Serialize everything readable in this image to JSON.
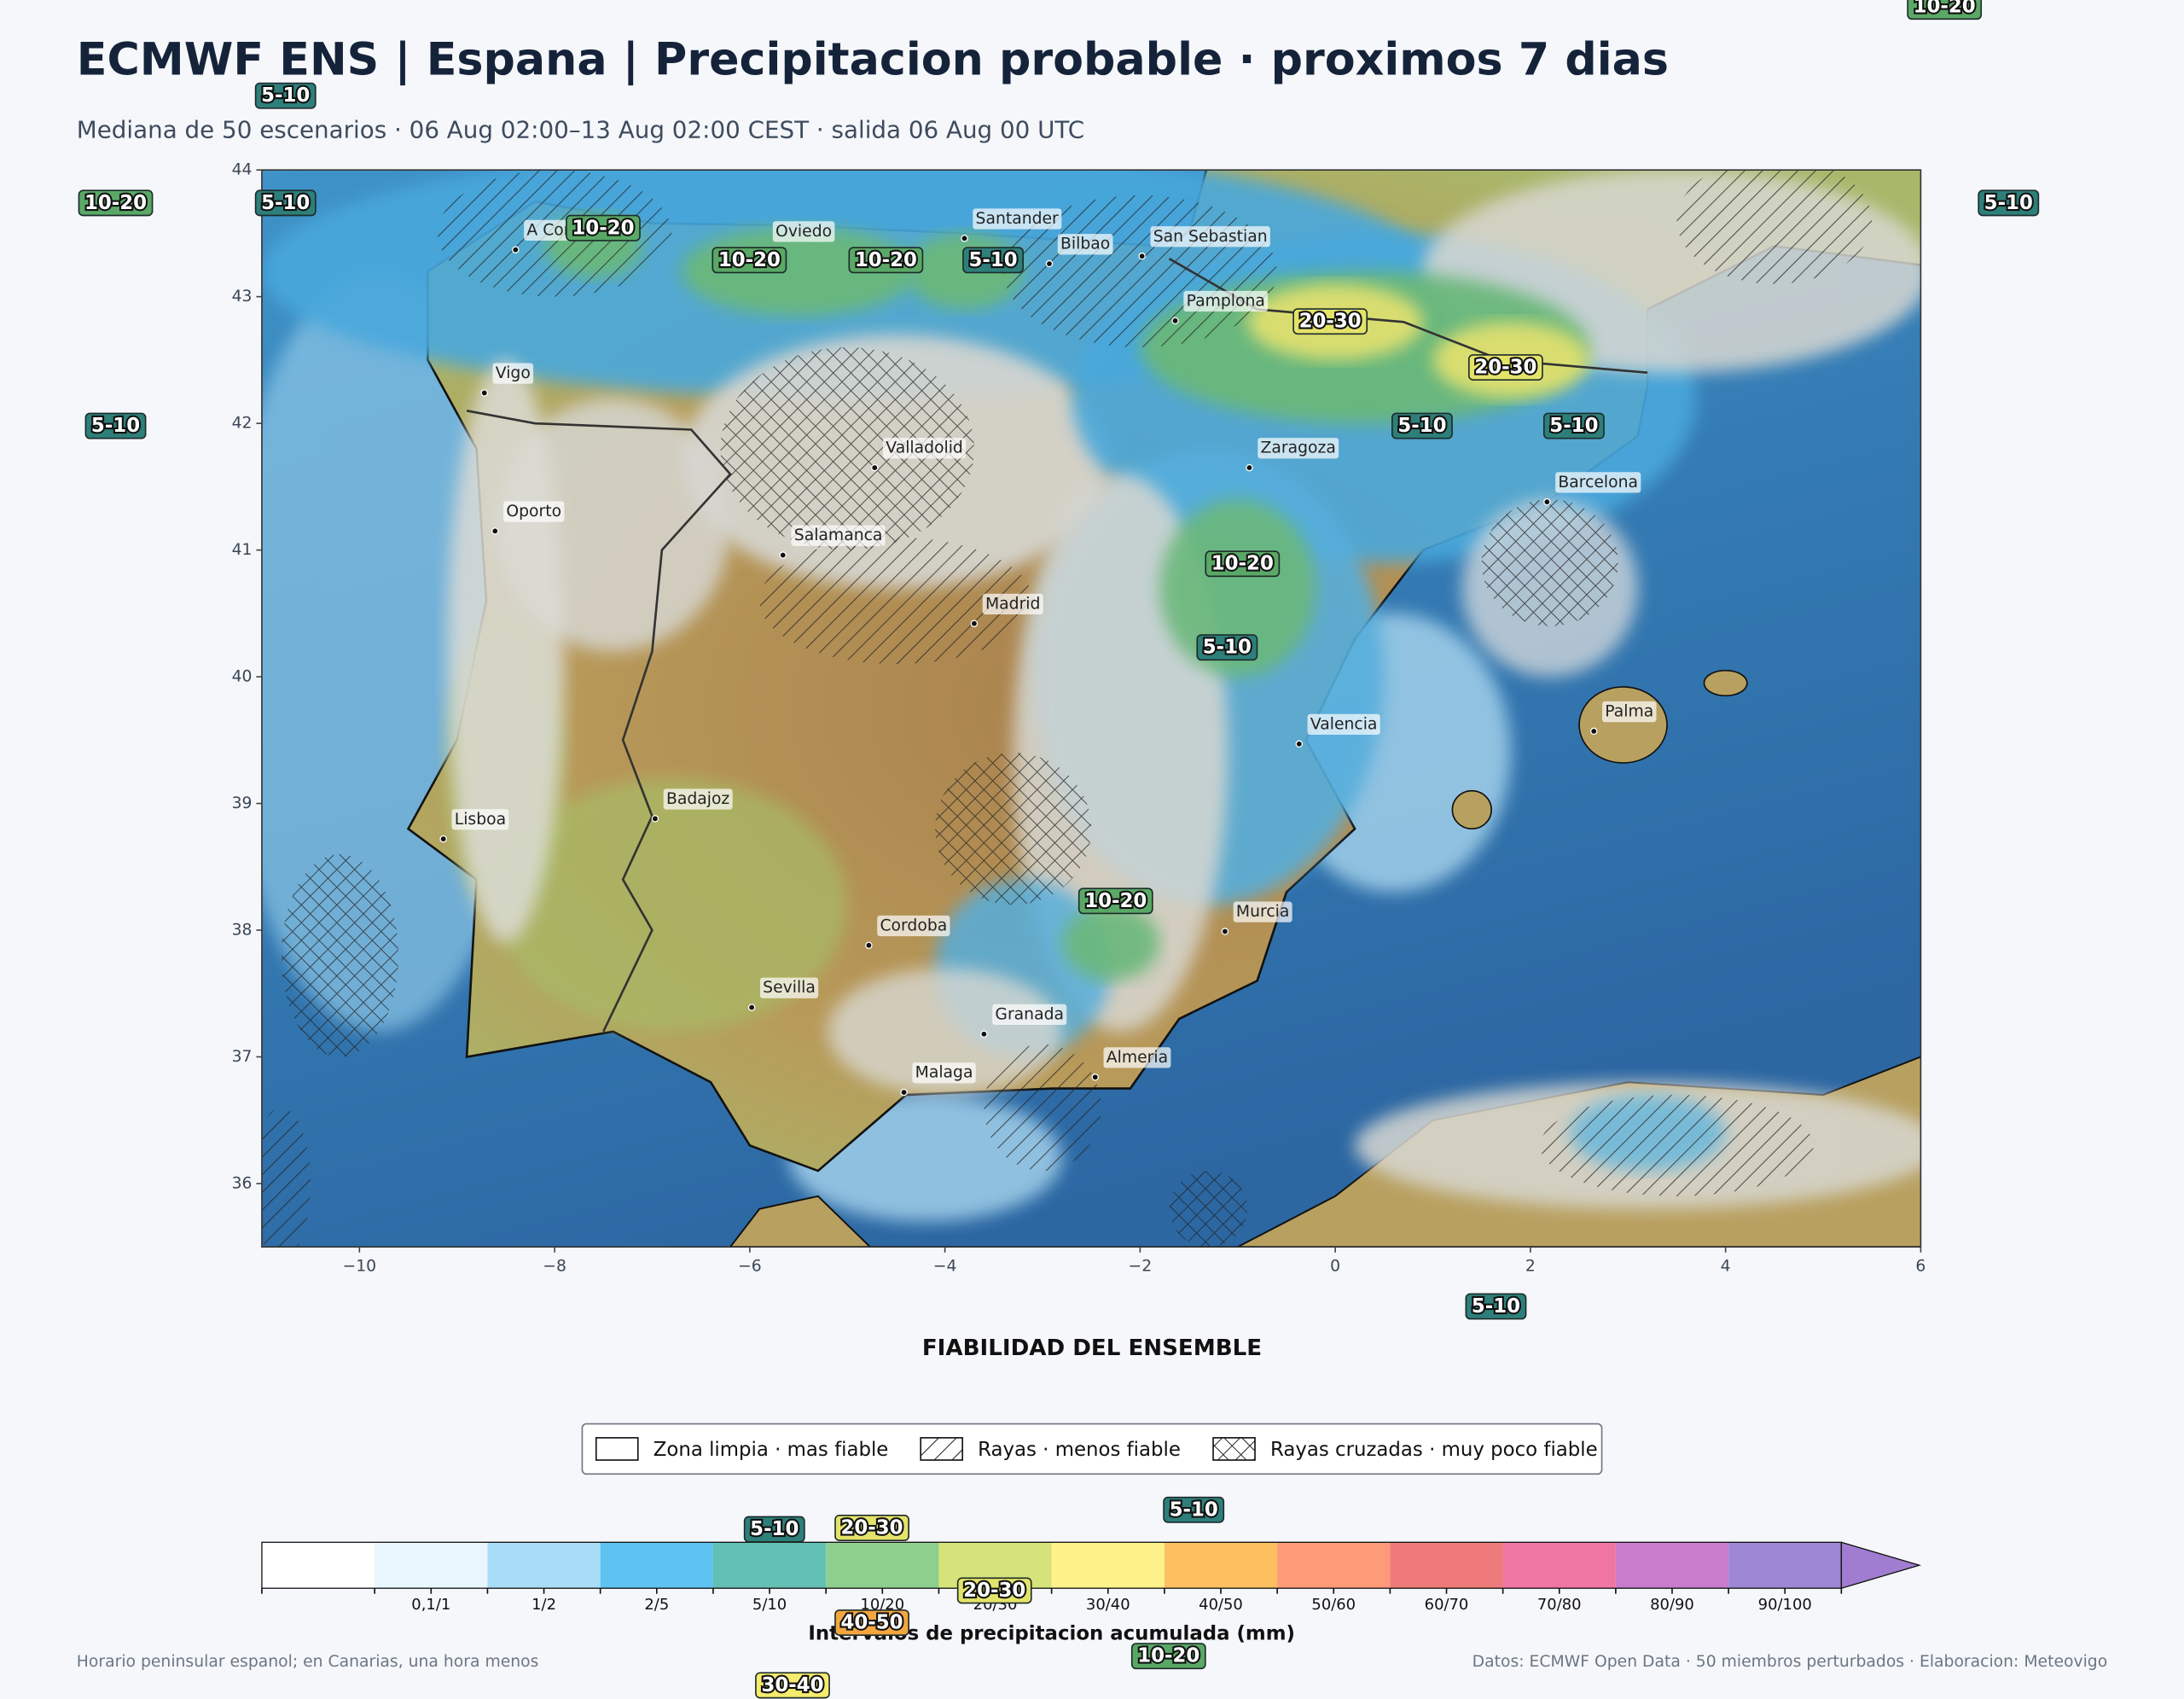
{
  "header": {
    "title": "ECMWF ENS | Espana | Precipitacion probable · proximos 7 dias",
    "subtitle": "Mediana de 50 escenarios · 06 Aug 02:00–13 Aug 02:00 CEST · salida 06 Aug 00 UTC"
  },
  "map": {
    "xlim": [
      -11,
      6
    ],
    "ylim": [
      35.5,
      44
    ],
    "xticks": [
      {
        "value": -10,
        "label": "−10"
      },
      {
        "value": -8,
        "label": "−8"
      },
      {
        "value": -6,
        "label": "−6"
      },
      {
        "value": -4,
        "label": "−4"
      },
      {
        "value": -2,
        "label": "−2"
      },
      0,
      2,
      4,
      6
    ],
    "yticks": [
      36,
      37,
      38,
      39,
      40,
      41,
      42,
      43,
      44
    ],
    "cities": [
      "A Coruna",
      "Oviedo",
      "Santander",
      "Bilbao",
      "San Sebastian",
      "Pamplona",
      "Vigo",
      "Valladolid",
      "Zaragoza",
      "Oporto",
      "Barcelona",
      "Salamanca",
      "Madrid",
      "Valencia",
      "Palma",
      "Badajoz",
      "Lisboa",
      "Cordoba",
      "Murcia",
      "Sevilla",
      "Granada",
      "Almeria",
      "Malaga"
    ],
    "badges": [
      {
        "label": "10-20",
        "color": "#5aa866"
      },
      {
        "label": "5-10",
        "color": "#2e7f7a"
      },
      {
        "label": "10-20",
        "color": "#5aa866"
      },
      {
        "label": "5-10",
        "color": "#2e7f7a"
      },
      {
        "label": "5-10",
        "color": "#2e7f7a"
      },
      {
        "label": "10-20",
        "color": "#5aa866"
      },
      {
        "label": "10-20",
        "color": "#5aa866"
      },
      {
        "label": "10-20",
        "color": "#5aa866"
      },
      {
        "label": "5-10",
        "color": "#2e7f7a"
      },
      {
        "label": "20-30",
        "color": "#e3e36a"
      },
      {
        "label": "20-30",
        "color": "#e3e36a"
      },
      {
        "label": "5-10",
        "color": "#2e7f7a"
      },
      {
        "label": "5-10",
        "color": "#2e7f7a"
      },
      {
        "label": "5-10",
        "color": "#2e7f7a"
      },
      {
        "label": "10-20",
        "color": "#5aa866"
      },
      {
        "label": "5-10",
        "color": "#2e7f7a"
      },
      {
        "label": "10-20",
        "color": "#5aa866"
      },
      {
        "label": "5-10",
        "color": "#2e7f7a"
      },
      {
        "label": "5-10",
        "color": "#2e7f7a"
      },
      {
        "label": "20-30",
        "color": "#e3e36a"
      },
      {
        "label": "5-10",
        "color": "#2e7f7a"
      },
      {
        "label": "20-30",
        "color": "#e3e36a"
      },
      {
        "label": "40-50",
        "color": "#f4a640"
      },
      {
        "label": "10-20",
        "color": "#5aa866"
      },
      {
        "label": "30-40",
        "color": "#f5ec6e"
      }
    ]
  },
  "reliability": {
    "title": "FIABILIDAD DEL ENSEMBLE",
    "items": [
      "Zona limpia · mas fiable",
      "Rayas · menos fiable",
      "Rayas cruzadas · muy poco fiable"
    ]
  },
  "colorbar": {
    "title": "Intervalos de precipitacion acumulada (mm)",
    "colors": [
      "#ffffff",
      "#e8f6fd",
      "#a9dcf6",
      "#5ec3f0",
      "#62c0b4",
      "#8fcf8e",
      "#d5e37a",
      "#fff18a",
      "#fdbf60",
      "#fd9a78",
      "#ef7a7a",
      "#ef76a0",
      "#c77ccc",
      "#9d86d4",
      "#a07dd0"
    ],
    "labels": [
      "0,1/1",
      "1/2",
      "2/5",
      "5/10",
      "10/20",
      "20/30",
      "30/40",
      "40/50",
      "50/60",
      "60/70",
      "70/80",
      "80/90",
      "90/100"
    ]
  },
  "footer": {
    "left": "Horario peninsular espanol; en Canarias, una hora menos",
    "right": "Datos: ECMWF Open Data · 50 miembros perturbados · Elaboracion: Meteovigo"
  }
}
